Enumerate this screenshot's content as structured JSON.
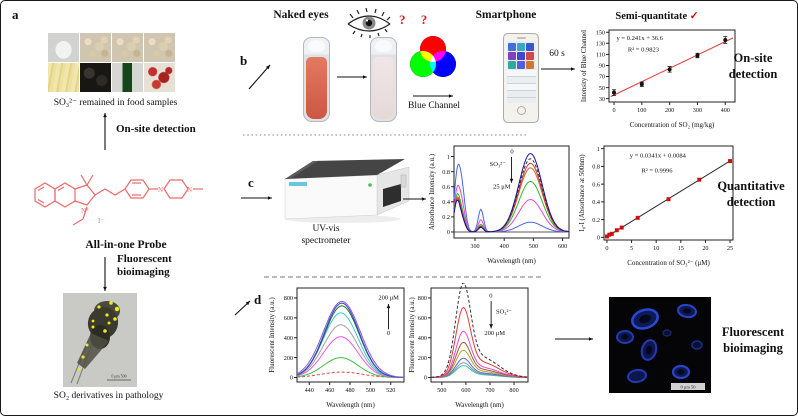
{
  "panels": {
    "a": "a",
    "b": "b",
    "c": "c",
    "d": "d"
  },
  "left": {
    "food_caption": "SO₃²⁻ remained in food samples",
    "onsite_label": "On-site detection",
    "probe_name": "All-in-one Probe",
    "fluor_label_1": "Fluorescent",
    "fluor_label_2": "bioimaging",
    "fish_caption": "SO₂ derivatives in pathology",
    "fish_scale": "0   μm   500"
  },
  "structure": {
    "n_plus": "N⁺",
    "n_left": "N",
    "n_right": "N",
    "iodide": "I⁻"
  },
  "top": {
    "naked_eyes": "Naked eyes",
    "question_marks": "? ?",
    "blue_channel": "Blue Channel",
    "smartphone": "Smartphone",
    "time": "60 s",
    "check": "✓"
  },
  "middle": {
    "instrument_line1": "UV-vis",
    "instrument_line2": "spectrometer"
  },
  "right": {
    "onsite_1": "On-site",
    "onsite_2": "detection",
    "quant_1": "Quantitative",
    "quant_2": "detection",
    "bio_1": "Fluorescent",
    "bio_2": "bioimaging"
  },
  "bottom": {
    "cells_scale": "0  μm  50"
  },
  "chart_data": [
    {
      "id": "blue-channel",
      "type": "scatter",
      "title": "Semi-quantitate",
      "xlabel": "Concentration of SO₂ (mg/kg)",
      "ylabel": "Intensity of Blue Channel",
      "xlim": [
        -18,
        435
      ],
      "ylim": [
        24,
        154
      ],
      "xticks": [
        0,
        100,
        200,
        300,
        400
      ],
      "yticks": [
        30,
        50,
        70,
        90,
        110,
        130,
        150
      ],
      "points": {
        "x": [
          0,
          100,
          200,
          300,
          400
        ],
        "y": [
          41,
          56,
          83,
          108,
          136
        ],
        "yerr": [
          5,
          4,
          5,
          4,
          6
        ],
        "color": "#111111",
        "marker": "circle"
      },
      "fit": {
        "slope": 0.241,
        "intercept": 36.6,
        "x1": -12,
        "x2": 428,
        "color": "#e84040"
      },
      "equation": [
        "y = 0.241x + 36.6",
        "R² = 0.9823"
      ],
      "eq_pos": [
        0.06,
        0.14
      ],
      "margins": {
        "l": 30,
        "r": 8,
        "t": 5,
        "b": 27
      }
    },
    {
      "id": "uvvis",
      "type": "line",
      "xlabel": "Wavelength (nm)",
      "ylabel": "Absorbance Intensity (a.u.)",
      "xlim": [
        228,
        622
      ],
      "ylim": [
        -0.08,
        1.14
      ],
      "xticks": [
        300,
        400,
        500,
        600
      ],
      "yticks": [
        0,
        0.2,
        0.4,
        0.6,
        0.8,
        1
      ],
      "zero_line": true,
      "series": [
        {
          "color": "#4a66e0",
          "gauss": [
            [
              490,
              40,
              0.13
            ],
            [
              253,
              12,
              0.62
            ],
            [
              237,
              10,
              0.55
            ],
            [
              320,
              9,
              0.3
            ]
          ]
        },
        {
          "color": "#e645d8",
          "gauss": [
            [
              490,
              40,
              0.43
            ],
            [
              253,
              12,
              0.38
            ],
            [
              237,
              10,
              0.42
            ],
            [
              320,
              9,
              0.16
            ]
          ]
        },
        {
          "color": "#2db82d",
          "gauss": [
            [
              490,
              40,
              0.67
            ],
            [
              253,
              12,
              0.26
            ],
            [
              237,
              10,
              0.38
            ],
            [
              320,
              9,
              0.1
            ]
          ]
        },
        {
          "color": "#c06a28",
          "gauss": [
            [
              490,
              40,
              0.85
            ],
            [
              253,
              12,
              0.22
            ],
            [
              237,
              10,
              0.36
            ],
            [
              320,
              9,
              0.08
            ]
          ]
        },
        {
          "color": "#e03535",
          "gauss": [
            [
              490,
              40,
              0.91
            ],
            [
              253,
              12,
              0.2
            ],
            [
              237,
              10,
              0.35
            ],
            [
              320,
              9,
              0.07
            ]
          ]
        },
        {
          "color": "#333333",
          "dash": true,
          "gauss": [
            [
              490,
              40,
              0.97
            ],
            [
              253,
              12,
              0.19
            ],
            [
              237,
              10,
              0.34
            ],
            [
              320,
              9,
              0.07
            ]
          ]
        },
        {
          "color": "#15159b",
          "gauss": [
            [
              490,
              40,
              1.04
            ],
            [
              253,
              12,
              0.18
            ],
            [
              237,
              10,
              0.34
            ],
            [
              320,
              9,
              0.06
            ]
          ]
        }
      ],
      "annotations": [
        {
          "t": "0",
          "fx": 0.49,
          "fy": 0.08
        },
        {
          "t": "SO₃²⁻",
          "fx": 0.31,
          "fy": 0.22
        },
        {
          "t": "25 μM",
          "fx": 0.34,
          "fy": 0.46
        }
      ],
      "arrow": {
        "fx1": 0.5,
        "fy1": 0.12,
        "fx2": 0.5,
        "fy2": 0.4
      },
      "margins": {
        "l": 27,
        "r": 6,
        "t": 5,
        "b": 27
      }
    },
    {
      "id": "linear",
      "type": "scatter",
      "xlabel": "Concentration of SO₃²⁻ (μM)",
      "ylabel": "I₀-I (Absorbance at 500nm)",
      "xlim": [
        -0.6,
        25.6
      ],
      "ylim": [
        -0.03,
        1.03
      ],
      "xticks": [
        0,
        5,
        10,
        15,
        20,
        25
      ],
      "yticks": [
        0,
        0.2,
        0.4,
        0.6,
        0.8,
        1
      ],
      "points": {
        "x": [
          0,
          0.5,
          1,
          2,
          3,
          6.25,
          12.5,
          18.75,
          25
        ],
        "y": [
          0.01,
          0.03,
          0.04,
          0.08,
          0.11,
          0.22,
          0.43,
          0.65,
          0.86
        ],
        "color": "#cc1111",
        "marker": "square"
      },
      "fit": {
        "slope": 0.0341,
        "intercept": 0.0084,
        "x1": 0,
        "x2": 25.3,
        "color": "#333333"
      },
      "equation": [
        "y = 0.0341x + 0.0084",
        "R² = 0.9996"
      ],
      "eq_pos": [
        0.2,
        0.12
      ],
      "margins": {
        "l": 27,
        "r": 8,
        "t": 5,
        "b": 27
      }
    },
    {
      "id": "fluor-up",
      "type": "line",
      "xlabel": "Wavelength (nm)",
      "ylabel": "Fluorescent Intensity (a.u.)",
      "xlim": [
        428,
        533
      ],
      "ylim": [
        -45,
        900
      ],
      "xticks": [
        440,
        460,
        480,
        500,
        520
      ],
      "yticks": [
        0,
        200,
        400,
        600,
        800
      ],
      "series": [
        {
          "color": "#e04545",
          "dash": true,
          "gauss": [
            [
              472,
              20,
              55
            ]
          ]
        },
        {
          "color": "#3dbb3d",
          "gauss": [
            [
              471,
              17,
              200
            ]
          ]
        },
        {
          "color": "#ee55ee",
          "gauss": [
            [
              471,
              17,
              410
            ]
          ]
        },
        {
          "color": "#a0a0a0",
          "gauss": [
            [
              471,
              17,
              530
            ]
          ]
        },
        {
          "color": "#35c8d8",
          "gauss": [
            [
              471,
              17,
              650
            ]
          ]
        },
        {
          "color": "#1e7a1e",
          "gauss": [
            [
              472,
              17,
              720
            ]
          ]
        },
        {
          "color": "#3b3bd0",
          "gauss": [
            [
              472,
              17,
              748
            ]
          ]
        },
        {
          "color": "#8a5ad8",
          "gauss": [
            [
              472,
              18,
              765
            ]
          ]
        }
      ],
      "annotations": [
        {
          "t": "200 μM",
          "fx": 0.76,
          "fy": 0.12
        },
        {
          "t": "0",
          "fx": 0.84,
          "fy": 0.5
        }
      ],
      "arrow": {
        "fx1": 0.855,
        "fy1": 0.44,
        "fx2": 0.855,
        "fy2": 0.17
      },
      "margins": {
        "l": 30,
        "r": 5,
        "t": 5,
        "b": 27
      }
    },
    {
      "id": "fluor-down",
      "type": "line",
      "xlabel": "Wavelength (nm)",
      "ylabel": "Fluorescent Intensity (a.u.)",
      "xlim": [
        455,
        858
      ],
      "ylim": [
        -45,
        900
      ],
      "xticks": [
        500,
        600,
        700,
        800
      ],
      "yticks": [
        0,
        200,
        400,
        600,
        800
      ],
      "series": [
        {
          "color": "#2fc5c5",
          "gauss": [
            [
              588,
              30,
              105
            ],
            [
              665,
              70,
              26
            ]
          ]
        },
        {
          "color": "#909090",
          "gauss": [
            [
              588,
              30,
              130
            ],
            [
              665,
              70,
              33
            ]
          ]
        },
        {
          "color": "#4868d8",
          "gauss": [
            [
              588,
              30,
              170
            ],
            [
              665,
              70,
              43
            ]
          ]
        },
        {
          "color": "#b8a12d",
          "gauss": [
            [
              588,
              30,
              240
            ],
            [
              665,
              70,
              60
            ]
          ]
        },
        {
          "color": "#a05a2d",
          "gauss": [
            [
              588,
              30,
              310
            ],
            [
              665,
              70,
              78
            ]
          ]
        },
        {
          "color": "#d94fd9",
          "gauss": [
            [
              588,
              30,
              410
            ],
            [
              665,
              70,
              100
            ]
          ]
        },
        {
          "color": "#e03c3c",
          "gauss": [
            [
              588,
              30,
              620
            ],
            [
              665,
              70,
              150
            ]
          ]
        },
        {
          "color": "#303030",
          "dash": true,
          "gauss": [
            [
              588,
              31,
              840
            ],
            [
              665,
              70,
              200
            ]
          ]
        }
      ],
      "annotations": [
        {
          "t": "0",
          "fx": 0.6,
          "fy": 0.1
        },
        {
          "t": "SO₃²⁻",
          "fx": 0.67,
          "fy": 0.27
        },
        {
          "t": "200 μM",
          "fx": 0.55,
          "fy": 0.5
        }
      ],
      "arrow": {
        "fx1": 0.62,
        "fy1": 0.14,
        "fx2": 0.62,
        "fy2": 0.43
      },
      "margins": {
        "l": 24,
        "r": 5,
        "t": 5,
        "b": 27
      }
    }
  ]
}
